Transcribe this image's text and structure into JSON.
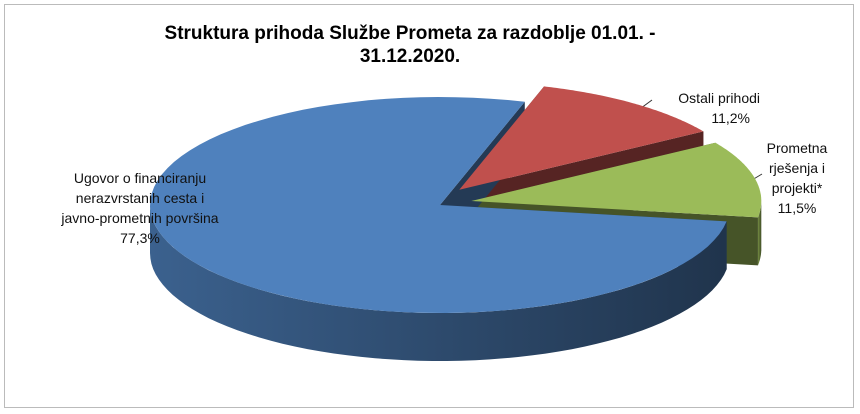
{
  "chart_data": {
    "type": "pie3d",
    "title": "Struktura prihoda Službe Prometa za razdoblje 01.01. - 31.12.2020.",
    "categories": [
      "Ostali prihodi",
      "Prometna rješenja i projekti*",
      "Ugovor o financiranju nerazvrstanih cesta i javno-prometnih površina"
    ],
    "values": [
      11.2,
      11.5,
      77.3
    ],
    "value_labels": [
      "11,2%",
      "11,5%",
      "77,3%"
    ],
    "colors": [
      "#c0504d",
      "#9bbb59",
      "#4f81bd"
    ]
  }
}
